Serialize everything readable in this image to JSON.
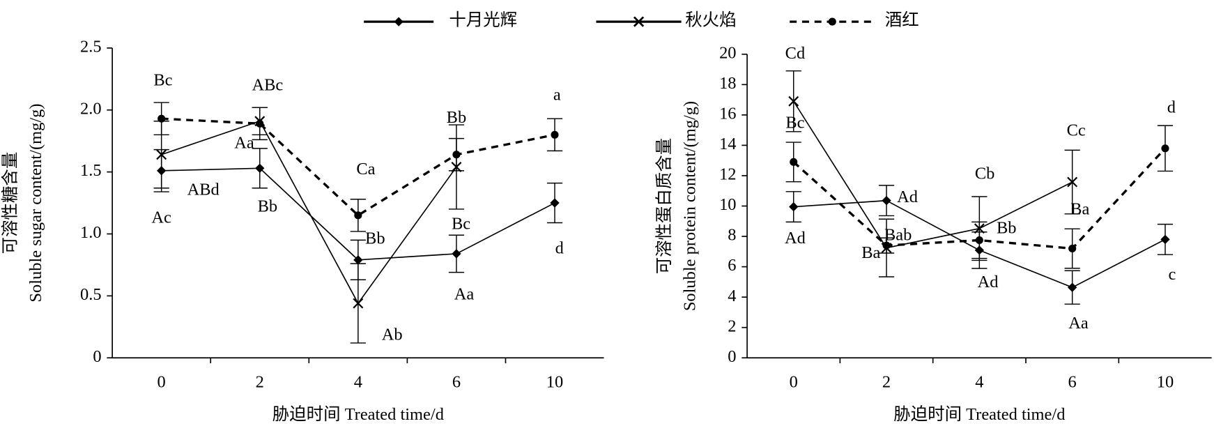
{
  "chart_data": [
    {
      "type": "line",
      "legend": "top",
      "xlabel": "胁迫时间 Treated time/d",
      "ylabel": [
        "可溶性糖含量",
        "Soluble sugar content/(mg/g)"
      ],
      "categories": [
        "0",
        "2",
        "4",
        "6",
        "10"
      ],
      "ylim": [
        0,
        2.5
      ],
      "yticks": [
        0,
        0.5,
        {
          "value": 1,
          "label": "1.0"
        },
        1.5,
        {
          "value": 2,
          "label": "2.0"
        },
        2.5
      ],
      "series": [
        {
          "name": "十月光辉",
          "color": "#000000",
          "line_style": "solid",
          "marker": "diamond",
          "values": [
            1.51,
            1.53,
            0.79,
            0.84,
            1.25
          ],
          "errors": [
            0.17,
            0.16,
            0.16,
            0.15,
            0.16
          ],
          "letters": [
            "ABd",
            "Bb",
            "Bb",
            "Aa",
            "d"
          ]
        },
        {
          "name": "秋火焰",
          "color": "#000000",
          "line_style": "solid",
          "marker": "x",
          "values": [
            1.64,
            1.91,
            0.44,
            1.54,
            null
          ],
          "errors": [
            0.27,
            0.11,
            0.32,
            0.34,
            null
          ],
          "letters": [
            "Ac",
            "Aa",
            "Ab",
            "Bc",
            null
          ]
        },
        {
          "name": "酒红",
          "color": "#000000",
          "line_style": "dashed",
          "marker": "circle",
          "values": [
            1.93,
            1.89,
            1.15,
            1.64,
            1.8
          ],
          "errors": [
            0.13,
            0.13,
            0.13,
            0.13,
            0.13
          ],
          "letters": [
            "Bc",
            "ABc",
            "Ca",
            "Bb",
            "a"
          ]
        }
      ]
    },
    {
      "type": "line",
      "xlabel": "胁迫时间 Treated time/d",
      "ylabel": [
        "可溶性蛋白质含量",
        "Soluble protein content/(mg/g)"
      ],
      "categories": [
        "0",
        "2",
        "4",
        "6",
        "10"
      ],
      "ylim": [
        0,
        20
      ],
      "yticks": [
        0,
        2,
        4,
        6,
        8,
        10,
        12,
        14,
        16,
        18,
        20
      ],
      "series": [
        {
          "name": "十月光辉",
          "color": "#000000",
          "line_style": "solid",
          "marker": "diamond",
          "values": [
            9.95,
            10.36,
            7.09,
            4.64,
            7.8
          ],
          "errors": [
            1.0,
            1.0,
            1.2,
            1.1,
            1.0
          ],
          "letters": [
            "Ad",
            "Ad",
            "Ad",
            "Aa",
            "c"
          ]
        },
        {
          "name": "秋火焰",
          "color": "#000000",
          "line_style": "solid",
          "marker": "x",
          "values": [
            16.9,
            7.24,
            8.52,
            11.58,
            null
          ],
          "errors": [
            2.0,
            1.9,
            2.1,
            2.1,
            null
          ],
          "letters": [
            "Cd",
            "Ba",
            "Cb",
            "Cc",
            null
          ]
        },
        {
          "name": "酒红",
          "color": "#000000",
          "line_style": "dashed",
          "marker": "circle",
          "values": [
            12.9,
            7.4,
            7.75,
            7.2,
            13.8
          ],
          "errors": [
            1.3,
            0.5,
            1.2,
            1.3,
            1.5
          ],
          "letters": [
            "Bc",
            "Bab",
            "Bb",
            "Ba",
            "d"
          ]
        }
      ]
    }
  ]
}
